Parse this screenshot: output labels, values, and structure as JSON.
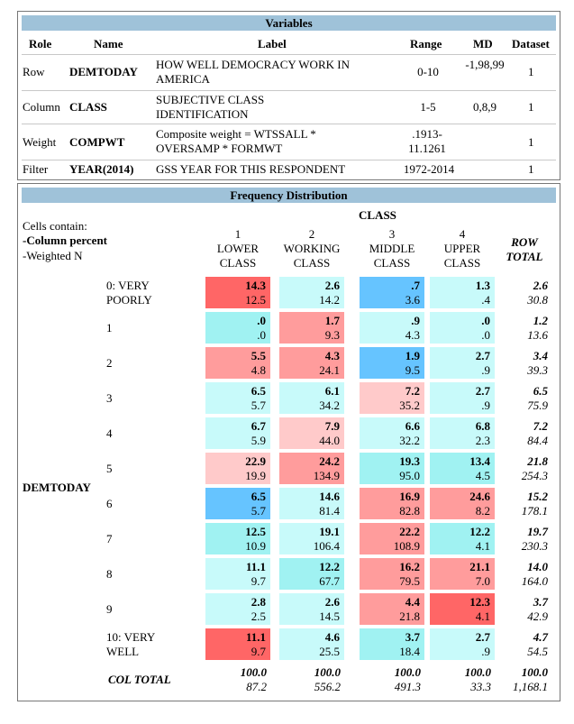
{
  "variables": {
    "title": "Variables",
    "headers": {
      "role": "Role",
      "name": "Name",
      "label": "Label",
      "range": "Range",
      "md": "MD",
      "dataset": "Dataset"
    },
    "rows": [
      {
        "role": "Row",
        "name": "DEMTODAY",
        "label": "HOW WELL DEMOCRACY WORK IN AMERICA",
        "range": "0-10",
        "md": "-1,98,99",
        "dataset": "1"
      },
      {
        "role": "Column",
        "name": "CLASS",
        "label": "SUBJECTIVE CLASS IDENTIFICATION",
        "range": "1-5",
        "md": "0,8,9",
        "dataset": "1"
      },
      {
        "role": "Weight",
        "name": "COMPWT",
        "label": "Composite weight = WTSSALL * OVERSAMP * FORMWT",
        "range": ".1913-11.1261",
        "md": "",
        "dataset": "1"
      },
      {
        "role": "Filter",
        "name": "YEAR(2014)",
        "label": "GSS YEAR FOR THIS RESPONDENT",
        "range": "1972-2014",
        "md": "",
        "dataset": "1"
      }
    ]
  },
  "frequency": {
    "title": "Frequency Distribution",
    "info": {
      "line1": "Cells contain:",
      "line2": "-Column percent",
      "line3": "-Weighted N"
    },
    "column_var": "CLASS",
    "row_var": "DEMTODAY",
    "columns": [
      {
        "num": "1",
        "line1": "LOWER",
        "line2": "CLASS"
      },
      {
        "num": "2",
        "line1": "WORKING",
        "line2": "CLASS"
      },
      {
        "num": "3",
        "line1": "MIDDLE",
        "line2": "CLASS"
      },
      {
        "num": "4",
        "line1": "UPPER",
        "line2": "CLASS"
      }
    ],
    "row_total_label": {
      "line1": "ROW",
      "line2": "TOTAL"
    },
    "rows": [
      {
        "label1": "0: VERY",
        "label2": "POORLY",
        "cells": [
          [
            "14.3",
            "12.5",
            "#ff6666"
          ],
          [
            "2.6",
            "14.2",
            "#c8fafa"
          ],
          [
            ".7",
            "3.6",
            "#66c4ff"
          ],
          [
            "1.3",
            ".4",
            "#c8fafa"
          ]
        ],
        "total": [
          "2.6",
          "30.8"
        ]
      },
      {
        "label1": "1",
        "label2": "",
        "cells": [
          [
            ".0",
            ".0",
            "#a0f2f2"
          ],
          [
            "1.7",
            "9.3",
            "#ff9c9c"
          ],
          [
            ".9",
            "4.3",
            "#c8fafa"
          ],
          [
            ".0",
            ".0",
            "#c8fafa"
          ]
        ],
        "total": [
          "1.2",
          "13.6"
        ]
      },
      {
        "label1": "2",
        "label2": "",
        "cells": [
          [
            "5.5",
            "4.8",
            "#ff9c9c"
          ],
          [
            "4.3",
            "24.1",
            "#ff9c9c"
          ],
          [
            "1.9",
            "9.5",
            "#66c4ff"
          ],
          [
            "2.7",
            ".9",
            "#c8fafa"
          ]
        ],
        "total": [
          "3.4",
          "39.3"
        ]
      },
      {
        "label1": "3",
        "label2": "",
        "cells": [
          [
            "6.5",
            "5.7",
            "#c8fafa"
          ],
          [
            "6.1",
            "34.2",
            "#c8fafa"
          ],
          [
            "7.2",
            "35.2",
            "#ffcaca"
          ],
          [
            "2.7",
            ".9",
            "#c8fafa"
          ]
        ],
        "total": [
          "6.5",
          "75.9"
        ]
      },
      {
        "label1": "4",
        "label2": "",
        "cells": [
          [
            "6.7",
            "5.9",
            "#c8fafa"
          ],
          [
            "7.9",
            "44.0",
            "#ffcaca"
          ],
          [
            "6.6",
            "32.2",
            "#c8fafa"
          ],
          [
            "6.8",
            "2.3",
            "#c8fafa"
          ]
        ],
        "total": [
          "7.2",
          "84.4"
        ]
      },
      {
        "label1": "5",
        "label2": "",
        "cells": [
          [
            "22.9",
            "19.9",
            "#ffcaca"
          ],
          [
            "24.2",
            "134.9",
            "#ff9c9c"
          ],
          [
            "19.3",
            "95.0",
            "#a0f2f2"
          ],
          [
            "13.4",
            "4.5",
            "#a0f2f2"
          ]
        ],
        "total": [
          "21.8",
          "254.3"
        ]
      },
      {
        "label1": "6",
        "label2": "",
        "cells": [
          [
            "6.5",
            "5.7",
            "#66c4ff"
          ],
          [
            "14.6",
            "81.4",
            "#c8fafa"
          ],
          [
            "16.9",
            "82.8",
            "#ff9c9c"
          ],
          [
            "24.6",
            "8.2",
            "#ff9c9c"
          ]
        ],
        "total": [
          "15.2",
          "178.1"
        ]
      },
      {
        "label1": "7",
        "label2": "",
        "cells": [
          [
            "12.5",
            "10.9",
            "#a0f2f2"
          ],
          [
            "19.1",
            "106.4",
            "#c8fafa"
          ],
          [
            "22.2",
            "108.9",
            "#ff9c9c"
          ],
          [
            "12.2",
            "4.1",
            "#a0f2f2"
          ]
        ],
        "total": [
          "19.7",
          "230.3"
        ]
      },
      {
        "label1": "8",
        "label2": "",
        "cells": [
          [
            "11.1",
            "9.7",
            "#c8fafa"
          ],
          [
            "12.2",
            "67.7",
            "#a0f2f2"
          ],
          [
            "16.2",
            "79.5",
            "#ff9c9c"
          ],
          [
            "21.1",
            "7.0",
            "#ff9c9c"
          ]
        ],
        "total": [
          "14.0",
          "164.0"
        ]
      },
      {
        "label1": "9",
        "label2": "",
        "cells": [
          [
            "2.8",
            "2.5",
            "#c8fafa"
          ],
          [
            "2.6",
            "14.5",
            "#c8fafa"
          ],
          [
            "4.4",
            "21.8",
            "#ff9c9c"
          ],
          [
            "12.3",
            "4.1",
            "#ff6666"
          ]
        ],
        "total": [
          "3.7",
          "42.9"
        ]
      },
      {
        "label1": "10: VERY",
        "label2": "WELL",
        "cells": [
          [
            "11.1",
            "9.7",
            "#ff6666"
          ],
          [
            "4.6",
            "25.5",
            "#c8fafa"
          ],
          [
            "3.7",
            "18.4",
            "#a0f2f2"
          ],
          [
            "2.7",
            ".9",
            "#c8fafa"
          ]
        ],
        "total": [
          "4.7",
          "54.5"
        ]
      }
    ],
    "col_total": {
      "label": "COL TOTAL",
      "cells": [
        [
          "100.0",
          "87.2"
        ],
        [
          "100.0",
          "556.2"
        ],
        [
          "100.0",
          "491.3"
        ],
        [
          "100.0",
          "33.3"
        ]
      ],
      "total": [
        "100.0",
        "1,168.1"
      ]
    }
  }
}
